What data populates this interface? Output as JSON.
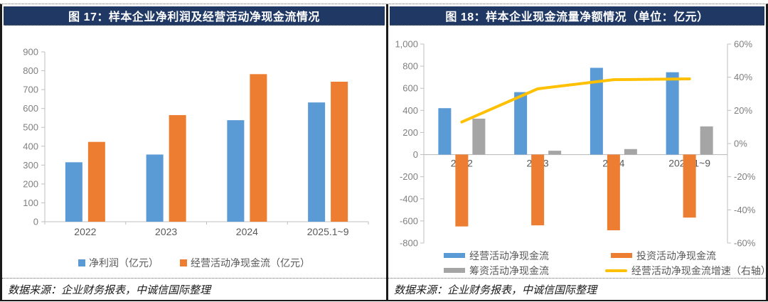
{
  "panels": [
    {
      "title": "图 17：样本企业净利润及经营活动净现金流情况",
      "source": "数据来源：企业财务报表，中诚信国际整理"
    },
    {
      "title": "图 18：样本企业现金流量净额情况（单位：亿元）",
      "source": "数据来源：企业财务报表，中诚信国际整理"
    }
  ],
  "colors": {
    "header_bg": "#1F3864",
    "header_text": "#FFFFFF",
    "blue": "#5B9BD5",
    "orange": "#ED7D31",
    "gray": "#A5A5A5",
    "yellow": "#FFC000",
    "axis_line": "#BFBFBF",
    "tick_text": "#7F7F7F",
    "label_text": "#595959",
    "border": "#1A1A1A"
  },
  "chart_data": [
    {
      "type": "bar",
      "title": "样本企业净利润及经营活动净现金流情况",
      "categories": [
        "2022",
        "2023",
        "2024",
        "2025.1~9"
      ],
      "series": [
        {
          "name": "净利润（亿元）",
          "color": "#5B9BD5",
          "values": [
            315,
            356,
            538,
            632
          ]
        },
        {
          "name": "经营活动净现金流（亿元）",
          "color": "#ED7D31",
          "values": [
            423,
            565,
            782,
            742
          ]
        }
      ],
      "ylim": [
        0,
        900
      ],
      "ytick": 100,
      "grid": false,
      "legend_position": "bottom"
    },
    {
      "type": "bar+line",
      "title": "样本企业现金流量净额情况（单位：亿元）",
      "categories": [
        "2022",
        "2023",
        "2024",
        "2025.1~9"
      ],
      "series": [
        {
          "name": "经营活动净现金流",
          "kind": "bar",
          "axis": "left",
          "color": "#5B9BD5",
          "values": [
            420,
            565,
            785,
            745
          ]
        },
        {
          "name": "投资活动净现金流",
          "kind": "bar",
          "axis": "left",
          "color": "#ED7D31",
          "values": [
            -650,
            -640,
            -685,
            -570
          ]
        },
        {
          "name": "筹资活动净现金流",
          "kind": "bar",
          "axis": "left",
          "color": "#A5A5A5",
          "values": [
            325,
            35,
            50,
            255
          ]
        },
        {
          "name": "经营活动净现金流增速（右轴）",
          "kind": "line",
          "axis": "right",
          "color": "#FFC000",
          "values": [
            13,
            33,
            38.5,
            39
          ]
        }
      ],
      "left_ylim": [
        -800,
        1000
      ],
      "left_ytick": 200,
      "right_ylim": [
        -60,
        60
      ],
      "right_ytick": 20,
      "right_tick_suffix": "%",
      "grid": false,
      "legend_position": "bottom"
    }
  ]
}
